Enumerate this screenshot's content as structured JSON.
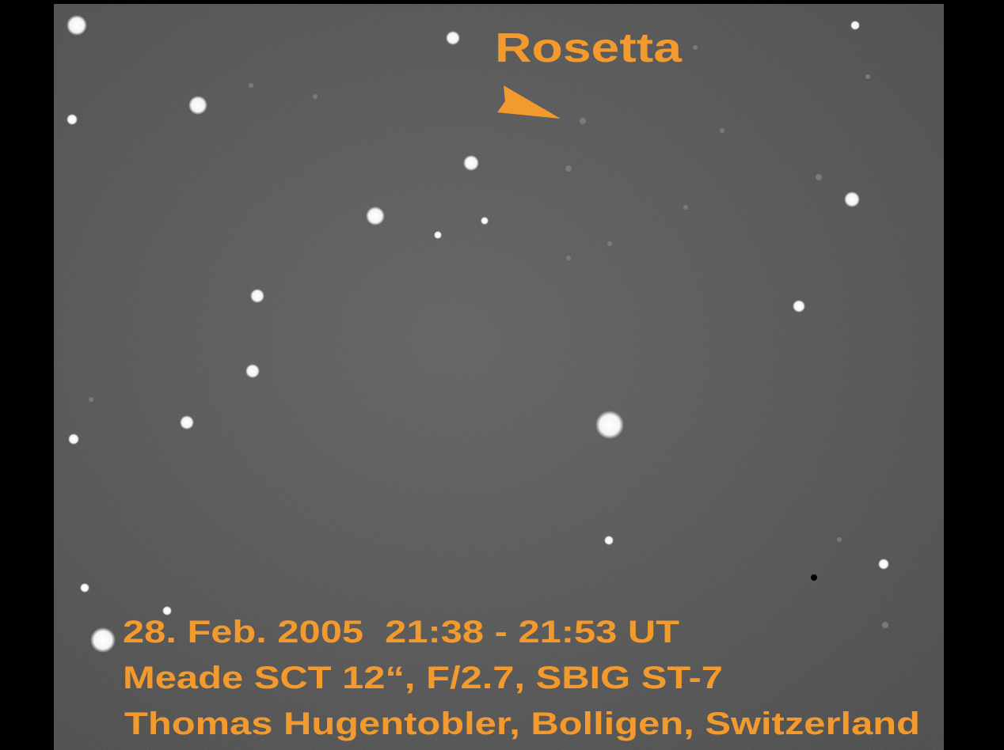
{
  "label": "Rosetta",
  "caption": {
    "lines": [
      "28. Feb. 2005  21:38 - 21:53 UT",
      "Meade SCT 12“, F/2.7, SBIG ST-7",
      "Thomas Hugentobler, Bolligen, Switzerland"
    ]
  }
}
